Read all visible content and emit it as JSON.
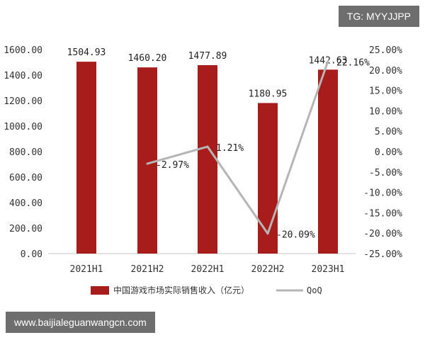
{
  "chart_data": {
    "type": "bar",
    "categories": [
      "2021H1",
      "2021H2",
      "2022H1",
      "2022H2",
      "2023H1"
    ],
    "series": [
      {
        "name": "中国游戏市场实际销售收入（亿元）",
        "type": "bar",
        "axis": "left",
        "values": [
          1504.93,
          1460.2,
          1477.89,
          1180.95,
          1442.63
        ],
        "value_labels": [
          "1504.93",
          "1460.20",
          "1477.89",
          "1180.95",
          "1442.63"
        ],
        "color": "#A81C1C"
      },
      {
        "name": "QoQ",
        "type": "line",
        "axis": "right",
        "values": [
          null,
          -2.97,
          1.21,
          -20.09,
          22.16
        ],
        "value_labels": [
          "",
          "-2.97%",
          "1.21%",
          "-20.09%",
          "22.16%"
        ],
        "color": "#B5B5B5"
      }
    ],
    "left_axis": {
      "ylim": [
        0,
        1600
      ],
      "ticks": [
        0,
        200,
        400,
        600,
        800,
        1000,
        1200,
        1400,
        1600
      ],
      "tick_labels": [
        "0.00",
        "200.00",
        "400.00",
        "600.00",
        "800.00",
        "1000.00",
        "1200.00",
        "1400.00",
        "1600.00"
      ]
    },
    "right_axis": {
      "ylim": [
        -25,
        25
      ],
      "ticks": [
        -25,
        -20,
        -15,
        -10,
        -5,
        0,
        5,
        10,
        15,
        20,
        25
      ],
      "tick_labels": [
        "-25.00%",
        "-20.00%",
        "-15.00%",
        "-10.00%",
        "-5.00%",
        "0.00%",
        "5.00%",
        "10.00%",
        "15.00%",
        "20.00%",
        "25.00%"
      ]
    },
    "legend_position": "bottom",
    "grid": false
  },
  "overlay": {
    "tg_badge": "TG: MYYJJPP",
    "site_badge": "www.baijialeguanwangcn.com"
  }
}
